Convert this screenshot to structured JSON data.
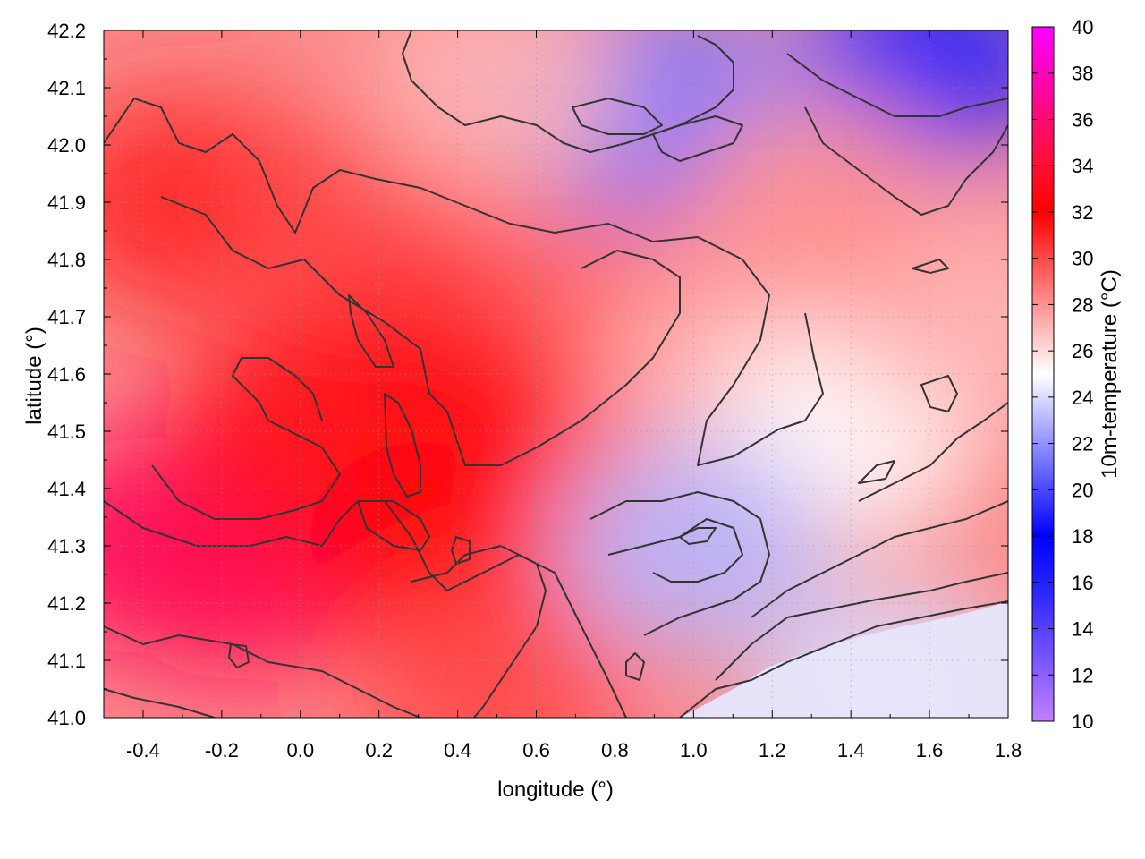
{
  "chart_data": {
    "type": "heatmap",
    "title": "",
    "xlabel": "longitude (°)",
    "ylabel": "latitude (°)",
    "colorbar_label": "10m-temperature (°C)",
    "xlim": [
      -0.5,
      1.8
    ],
    "ylim": [
      41.0,
      42.2
    ],
    "x_ticks": [
      -0.4,
      -0.2,
      0.0,
      0.2,
      0.4,
      0.6,
      0.8,
      1.0,
      1.2,
      1.4,
      1.6,
      1.8
    ],
    "x_tick_labels": [
      "-0.4",
      "-0.2",
      "0.0",
      "0.2",
      "0.4",
      "0.6",
      "0.8",
      "1.0",
      "1.2",
      "1.4",
      "1.6",
      "1.8"
    ],
    "y_ticks": [
      41.0,
      41.1,
      41.2,
      41.3,
      41.4,
      41.5,
      41.6,
      41.7,
      41.8,
      41.9,
      42.0,
      42.1,
      42.2
    ],
    "y_tick_labels": [
      "41.0",
      "41.1",
      "41.2",
      "41.3",
      "41.4",
      "41.5",
      "41.6",
      "41.7",
      "41.8",
      "41.9",
      "42.0",
      "42.1",
      "42.2"
    ],
    "colorbar_range": [
      10,
      40
    ],
    "colorbar_ticks": [
      10,
      12,
      14,
      16,
      18,
      20,
      22,
      24,
      26,
      28,
      30,
      32,
      34,
      36,
      38,
      40
    ],
    "colorbar_tick_labels": [
      "10",
      "12",
      "14",
      "16",
      "18",
      "20",
      "22",
      "24",
      "26",
      "28",
      "30",
      "32",
      "34",
      "36",
      "38",
      "40"
    ],
    "colormap": [
      {
        "value": 10,
        "color": "#c080ff"
      },
      {
        "value": 16,
        "color": "#2020ff"
      },
      {
        "value": 18,
        "color": "#0000ff"
      },
      {
        "value": 25,
        "color": "#ffffff"
      },
      {
        "value": 32,
        "color": "#ff0000"
      },
      {
        "value": 34,
        "color": "#ff1030"
      },
      {
        "value": 40,
        "color": "#ff00ff"
      }
    ],
    "grid": true,
    "grid_style": "dotted",
    "contours": true,
    "contour_color": "#333333",
    "temperature_regions": [
      {
        "lon": -0.4,
        "lat": 41.3,
        "value": 35.5
      },
      {
        "lon": -0.15,
        "lat": 41.25,
        "value": 35
      },
      {
        "lon": 0.0,
        "lat": 41.5,
        "value": 33
      },
      {
        "lon": 0.3,
        "lat": 41.7,
        "value": 33
      },
      {
        "lon": 0.6,
        "lat": 41.6,
        "value": 33
      },
      {
        "lon": 0.35,
        "lat": 41.3,
        "value": 32
      },
      {
        "lon": -0.3,
        "lat": 41.9,
        "value": 31
      },
      {
        "lon": 0.2,
        "lat": 41.9,
        "value": 30
      },
      {
        "lon": 0.8,
        "lat": 41.8,
        "value": 29
      },
      {
        "lon": 0.5,
        "lat": 41.05,
        "value": 30
      },
      {
        "lon": 1.1,
        "lat": 41.6,
        "value": 27
      },
      {
        "lon": 1.4,
        "lat": 41.5,
        "value": 25
      },
      {
        "lon": 1.0,
        "lat": 41.3,
        "value": 23
      },
      {
        "lon": 1.5,
        "lat": 41.05,
        "value": 24
      },
      {
        "lon": 1.6,
        "lat": 42.15,
        "value": 19
      },
      {
        "lon": 1.0,
        "lat": 42.05,
        "value": 22
      },
      {
        "lon": 0.8,
        "lat": 42.07,
        "value": 21
      },
      {
        "lon": 1.7,
        "lat": 41.7,
        "value": 27
      },
      {
        "lon": 1.3,
        "lat": 41.9,
        "value": 28
      },
      {
        "lon": 0.5,
        "lat": 42.1,
        "value": 27
      }
    ]
  }
}
